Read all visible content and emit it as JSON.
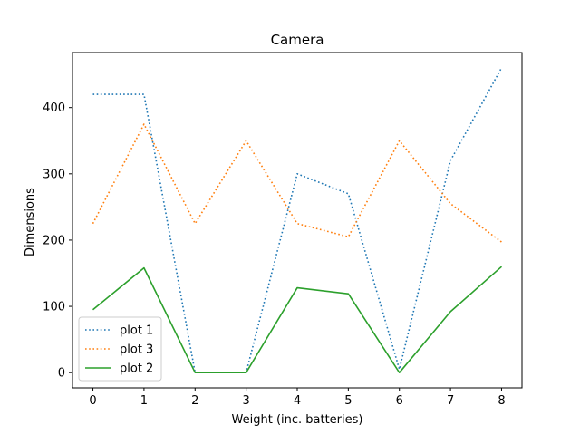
{
  "chart_data": {
    "type": "line",
    "title": "Camera",
    "xlabel": "Weight (inc. batteries)",
    "ylabel": "Dimensions",
    "x": [
      0,
      1,
      2,
      3,
      4,
      5,
      6,
      7,
      8
    ],
    "xlim": [
      -0.4,
      8.4
    ],
    "ylim": [
      -23,
      483
    ],
    "xticks": [
      0,
      1,
      2,
      3,
      4,
      5,
      6,
      7,
      8
    ],
    "yticks": [
      0,
      100,
      200,
      300,
      400
    ],
    "grid": false,
    "legend_position": "lower-left",
    "series": [
      {
        "name": "plot 1",
        "style": "dotted",
        "color": "#1f77b4",
        "values": [
          420,
          420,
          0,
          0,
          300,
          270,
          5,
          320,
          460
        ]
      },
      {
        "name": "plot 3",
        "style": "dotted",
        "color": "#ff7f0e",
        "values": [
          225,
          375,
          225,
          350,
          225,
          205,
          350,
          255,
          197
        ]
      },
      {
        "name": "plot 2",
        "style": "solid",
        "color": "#2ca02c",
        "values": [
          95,
          158,
          0,
          0,
          128,
          119,
          0,
          92,
          160
        ]
      }
    ]
  }
}
